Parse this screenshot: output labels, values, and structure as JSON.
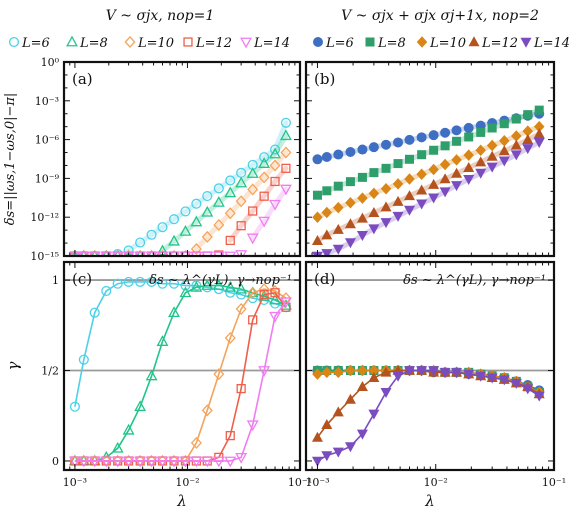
{
  "figure": {
    "header_left": "V ~ σjx, nop=1",
    "header_right": "V ~ σjx + σjx σj+1x, nop=2"
  },
  "chart_data": [
    {
      "id": "a",
      "panel_label": "(a)",
      "type": "scatter",
      "log_x": true,
      "log_y": true,
      "xlim": [
        0.0008,
        0.1
      ],
      "ylim": [
        1e-15,
        1
      ],
      "ylabel": "δs=||ωs,1−ωs,0|−π|",
      "yticks": [
        1e-15,
        1e-12,
        1e-09,
        1e-06,
        0.001,
        1
      ],
      "ytick_labels": [
        "10⁻¹⁵",
        "10⁻¹²",
        "10⁻⁹",
        "10⁻⁶",
        "10⁻³",
        "10⁰"
      ],
      "x": [
        0.001,
        0.0012,
        0.0015,
        0.0019,
        0.0024,
        0.003,
        0.0038,
        0.0048,
        0.006,
        0.0076,
        0.0096,
        0.012,
        0.015,
        0.019,
        0.024,
        0.03,
        0.038,
        0.048,
        0.06,
        0.075
      ],
      "series": [
        {
          "name": "L=6",
          "color": "#4dd0e8",
          "marker": "circle",
          "values": [
            1e-15,
            1e-15,
            1e-15,
            1e-15,
            1.4e-15,
            2.7e-15,
            1.1e-14,
            4.4e-14,
            1.7e-13,
            7e-13,
            2.8e-12,
            1.1e-11,
            4.3e-11,
            1.7e-10,
            6.9e-10,
            2.7e-09,
            1.1e-08,
            4.4e-08,
            1.7e-07,
            2e-05
          ]
        },
        {
          "name": "L=8",
          "color": "#22c48a",
          "marker": "triangle-up",
          "values": [
            1e-15,
            1e-15,
            1e-15,
            1e-15,
            1e-15,
            1e-15,
            1e-15,
            1e-15,
            2.5e-15,
            1.4e-14,
            8e-14,
            4.3e-13,
            2.4e-12,
            1.4e-11,
            7.7e-11,
            4.4e-10,
            2.4e-09,
            1.4e-08,
            7.7e-08,
            2e-06
          ]
        },
        {
          "name": "L=10",
          "color": "#f5a35a",
          "marker": "diamond",
          "values": [
            1e-15,
            1e-15,
            1e-15,
            1e-15,
            1e-15,
            1e-15,
            1e-15,
            1e-15,
            1e-15,
            1e-15,
            1e-15,
            3.5e-15,
            3e-14,
            2.5e-13,
            2e-12,
            1.7e-11,
            1.4e-10,
            1.2e-09,
            1e-08,
            1e-07
          ]
        },
        {
          "name": "L=12",
          "color": "#ee5f4a",
          "marker": "square",
          "values": [
            1e-15,
            1e-15,
            1e-15,
            1e-15,
            1e-15,
            1e-15,
            1e-15,
            1e-15,
            1e-15,
            1e-15,
            1e-15,
            1e-15,
            1e-15,
            1.2e-15,
            1.6e-14,
            2.2e-13,
            3e-12,
            4.2e-11,
            5.8e-10,
            6e-09
          ]
        },
        {
          "name": "L=14",
          "color": "#f07cf2",
          "marker": "triangle-down",
          "values": [
            1e-15,
            1e-15,
            1e-15,
            1e-15,
            1e-15,
            1e-15,
            1e-15,
            1e-15,
            1e-15,
            1e-15,
            1e-15,
            1e-15,
            1e-15,
            1e-15,
            1e-15,
            1.3e-15,
            2.5e-14,
            5e-13,
            1e-11,
            1.5e-10
          ]
        }
      ]
    },
    {
      "id": "b",
      "panel_label": "(b)",
      "type": "scatter",
      "log_x": true,
      "log_y": true,
      "xlim": [
        0.0008,
        0.1
      ],
      "ylim": [
        1e-15,
        1
      ],
      "x": [
        0.001,
        0.0012,
        0.0015,
        0.0019,
        0.0024,
        0.003,
        0.0038,
        0.0048,
        0.006,
        0.0076,
        0.0096,
        0.012,
        0.015,
        0.019,
        0.024,
        0.03,
        0.038,
        0.048,
        0.06,
        0.075
      ],
      "series": [
        {
          "name": "L=6",
          "color": "#3f6fc2",
          "marker": "circle",
          "values": [
            3e-08,
            4.5e-08,
            7e-08,
            1.1e-07,
            1.7e-07,
            2.6e-07,
            4e-07,
            6e-07,
            9.5e-07,
            1.5e-06,
            2.2e-06,
            3.4e-06,
            5.2e-06,
            8e-06,
            1.2e-05,
            1.9e-05,
            2.9e-05,
            4.5e-05,
            7e-05,
            0.0001
          ]
        },
        {
          "name": "L=8",
          "color": "#2e9e6b",
          "marker": "square",
          "values": [
            5e-11,
            1.1e-10,
            2.5e-10,
            5.6e-10,
            1.2e-09,
            2.8e-09,
            6e-09,
            1.4e-08,
            3e-08,
            6.8e-08,
            1.5e-07,
            3.3e-07,
            7.4e-07,
            1.6e-06,
            3.6e-06,
            7.9e-06,
            1.7e-05,
            3.9e-05,
            8.5e-05,
            0.00019
          ]
        },
        {
          "name": "L=10",
          "color": "#d98616",
          "marker": "diamond",
          "values": [
            1e-12,
            2.3e-12,
            5.5e-12,
            1.3e-11,
            3e-11,
            7e-11,
            1.6e-10,
            3.8e-10,
            9e-10,
            2.1e-09,
            4.9e-09,
            1.2e-08,
            2.7e-08,
            6.3e-08,
            1.5e-07,
            3.5e-07,
            8.1e-07,
            1.9e-06,
            4.5e-06,
            1e-05
          ]
        },
        {
          "name": "L=12",
          "color": "#b5531f",
          "marker": "triangle-up",
          "values": [
            1.5e-14,
            4.1e-14,
            1.1e-13,
            3e-13,
            8.2e-13,
            2.2e-12,
            6e-12,
            1.6e-11,
            4.5e-11,
            1.2e-10,
            3.3e-10,
            9e-10,
            2.4e-09,
            6.6e-09,
            1.8e-08,
            4.9e-08,
            1.3e-07,
            3.6e-07,
            9.8e-07,
            2.7e-06
          ]
        },
        {
          "name": "L=14",
          "color": "#7a4cc0",
          "marker": "triangle-down",
          "values": [
            1e-15,
            1.6e-15,
            3.5e-15,
            1.1e-14,
            4e-14,
            1.3e-13,
            4e-13,
            1.2e-12,
            3.6e-12,
            1.1e-11,
            3.2e-11,
            9.6e-11,
            2.9e-10,
            8.6e-10,
            2.6e-09,
            7.7e-09,
            2.3e-08,
            6.9e-08,
            2.1e-07,
            6.2e-07
          ]
        }
      ]
    },
    {
      "id": "c",
      "panel_label": "(c)",
      "annotation": "δs ~ λ^(γL), γ→nop⁻¹",
      "type": "line",
      "log_x": true,
      "log_y": false,
      "xlim": [
        0.0008,
        0.1
      ],
      "ylim": [
        -0.05,
        1.1
      ],
      "xlabel": "λ",
      "ylabel": "γ",
      "yticks": [
        0,
        0.5,
        1
      ],
      "ytick_labels": [
        "0",
        "1/2",
        "1"
      ],
      "xticks": [
        0.001,
        0.01,
        0.1
      ],
      "xtick_labels": [
        "10⁻³",
        "10⁻²",
        "10⁻¹"
      ],
      "hlines": [
        0.5,
        1
      ],
      "x": [
        0.001,
        0.0012,
        0.0015,
        0.0019,
        0.0024,
        0.003,
        0.0038,
        0.0048,
        0.006,
        0.0076,
        0.0096,
        0.012,
        0.015,
        0.019,
        0.024,
        0.03,
        0.038,
        0.048,
        0.06,
        0.075
      ],
      "series": [
        {
          "name": "L=6",
          "color": "#4dd0e8",
          "marker": "circle",
          "values": [
            0.3,
            0.56,
            0.82,
            0.94,
            0.98,
            0.99,
            0.99,
            0.99,
            0.98,
            0.98,
            0.97,
            0.97,
            0.96,
            0.95,
            0.93,
            0.92,
            0.9,
            0.89,
            0.87,
            0.85
          ]
        },
        {
          "name": "L=8",
          "color": "#22c48a",
          "marker": "triangle-up",
          "values": [
            0.0,
            0.0,
            0.0,
            0.02,
            0.07,
            0.17,
            0.3,
            0.47,
            0.66,
            0.82,
            0.93,
            0.96,
            0.97,
            0.97,
            0.96,
            0.95,
            0.93,
            0.91,
            0.89,
            0.86
          ]
        },
        {
          "name": "L=10",
          "color": "#f5a35a",
          "marker": "diamond",
          "values": [
            0.0,
            0.0,
            0.0,
            0.0,
            0.0,
            0.0,
            0.0,
            0.0,
            0.0,
            0.0,
            0.0,
            0.1,
            0.28,
            0.48,
            0.68,
            0.84,
            0.93,
            0.95,
            0.94,
            0.9
          ]
        },
        {
          "name": "L=12",
          "color": "#ee5f4a",
          "marker": "square",
          "values": [
            0.0,
            0.0,
            0.0,
            0.0,
            0.0,
            0.0,
            0.0,
            0.0,
            0.0,
            0.0,
            0.0,
            0.0,
            0.0,
            0.02,
            0.14,
            0.4,
            0.78,
            0.92,
            0.93,
            0.85
          ]
        },
        {
          "name": "L=14",
          "color": "#f07cf2",
          "marker": "triangle-down",
          "values": [
            0.0,
            0.0,
            0.0,
            0.0,
            0.0,
            0.0,
            0.0,
            0.0,
            0.0,
            0.0,
            0.0,
            0.0,
            0.0,
            0.0,
            0.0,
            0.02,
            0.2,
            0.5,
            0.8,
            0.88
          ]
        }
      ]
    },
    {
      "id": "d",
      "panel_label": "(d)",
      "annotation": "δs ~ λ^(γL), γ→nop⁻¹",
      "type": "line",
      "log_x": true,
      "log_y": false,
      "xlim": [
        0.0008,
        0.1
      ],
      "ylim": [
        -0.05,
        1.1
      ],
      "xlabel": "λ",
      "xticks": [
        0.001,
        0.01,
        0.1
      ],
      "xtick_labels": [
        "10⁻³",
        "10⁻²",
        "10⁻¹"
      ],
      "hlines": [
        0.5,
        1
      ],
      "x": [
        0.001,
        0.0012,
        0.0015,
        0.0019,
        0.0024,
        0.003,
        0.0038,
        0.0048,
        0.006,
        0.0076,
        0.0096,
        0.012,
        0.015,
        0.019,
        0.024,
        0.03,
        0.038,
        0.048,
        0.06,
        0.075
      ],
      "series": [
        {
          "name": "L=6",
          "color": "#3f6fc2",
          "marker": "circle",
          "values": [
            0.5,
            0.5,
            0.5,
            0.5,
            0.5,
            0.5,
            0.5,
            0.5,
            0.5,
            0.5,
            0.49,
            0.49,
            0.49,
            0.48,
            0.48,
            0.47,
            0.46,
            0.44,
            0.42,
            0.39
          ]
        },
        {
          "name": "L=8",
          "color": "#2e9e6b",
          "marker": "square",
          "values": [
            0.5,
            0.5,
            0.5,
            0.5,
            0.5,
            0.5,
            0.5,
            0.5,
            0.5,
            0.5,
            0.5,
            0.49,
            0.49,
            0.49,
            0.48,
            0.47,
            0.46,
            0.44,
            0.41,
            0.38
          ]
        },
        {
          "name": "L=10",
          "color": "#d98616",
          "marker": "diamond",
          "values": [
            0.48,
            0.49,
            0.49,
            0.5,
            0.5,
            0.5,
            0.5,
            0.5,
            0.5,
            0.5,
            0.5,
            0.49,
            0.49,
            0.49,
            0.48,
            0.47,
            0.46,
            0.44,
            0.41,
            0.38
          ]
        },
        {
          "name": "L=12",
          "color": "#b5531f",
          "marker": "triangle-up",
          "values": [
            0.13,
            0.2,
            0.27,
            0.34,
            0.41,
            0.46,
            0.49,
            0.5,
            0.5,
            0.5,
            0.49,
            0.49,
            0.49,
            0.48,
            0.47,
            0.46,
            0.45,
            0.43,
            0.41,
            0.37
          ]
        },
        {
          "name": "L=14",
          "color": "#7a4cc0",
          "marker": "triangle-down",
          "values": [
            0.0,
            0.03,
            0.05,
            0.08,
            0.15,
            0.26,
            0.38,
            0.47,
            0.5,
            0.5,
            0.5,
            0.49,
            0.49,
            0.48,
            0.47,
            0.46,
            0.45,
            0.43,
            0.4,
            0.36
          ]
        }
      ]
    }
  ]
}
